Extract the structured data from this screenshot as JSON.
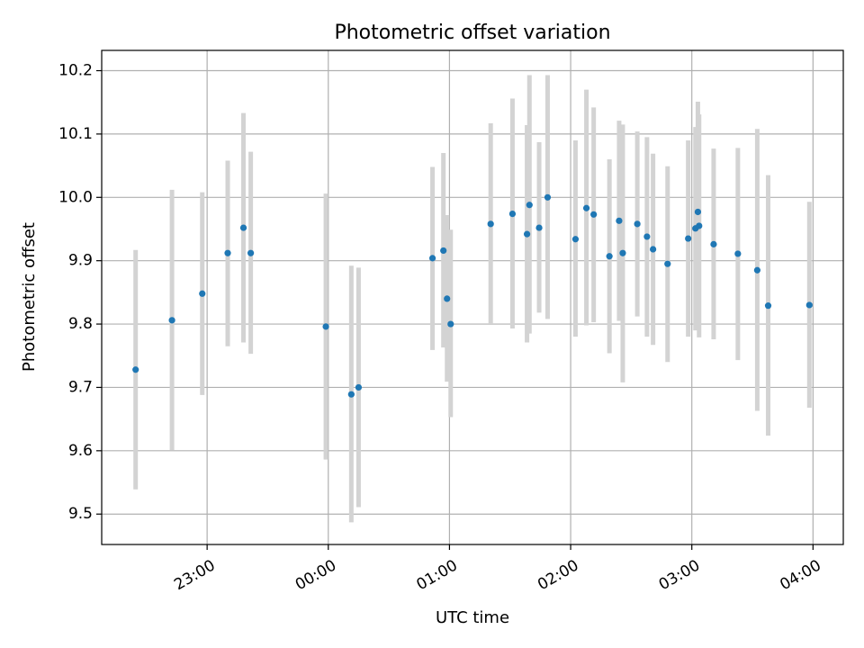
{
  "chart_data": {
    "type": "scatter",
    "title": "Photometric offset variation",
    "xlabel": "UTC time",
    "ylabel": "Photometric offset",
    "grid": true,
    "x_unit": "UTC clock time (hours past 00:00, negative = previous day)",
    "xlim": [
      -1.87,
      4.25
    ],
    "ylim": [
      9.452,
      10.232
    ],
    "x_ticks": [
      {
        "value": -1.0,
        "label": "23:00"
      },
      {
        "value": 0.0,
        "label": "00:00"
      },
      {
        "value": 1.0,
        "label": "01:00"
      },
      {
        "value": 2.0,
        "label": "02:00"
      },
      {
        "value": 3.0,
        "label": "03:00"
      },
      {
        "value": 4.0,
        "label": "04:00"
      }
    ],
    "y_ticks": [
      {
        "value": 9.5,
        "label": "9.5"
      },
      {
        "value": 9.6,
        "label": "9.6"
      },
      {
        "value": 9.7,
        "label": "9.7"
      },
      {
        "value": 9.8,
        "label": "9.8"
      },
      {
        "value": 9.9,
        "label": "9.9"
      },
      {
        "value": 10.0,
        "label": "10.0"
      },
      {
        "value": 10.1,
        "label": "10.1"
      },
      {
        "value": 10.2,
        "label": "10.2"
      }
    ],
    "marker_color": "#1f77b4",
    "errorbar_color": "#d3d3d3",
    "points": [
      {
        "x": -1.59,
        "y": 9.728,
        "low": 9.539,
        "high": 9.917
      },
      {
        "x": -1.29,
        "y": 9.806,
        "low": 9.601,
        "high": 10.012
      },
      {
        "x": -1.04,
        "y": 9.848,
        "low": 9.688,
        "high": 10.008
      },
      {
        "x": -0.83,
        "y": 9.912,
        "low": 9.765,
        "high": 10.058
      },
      {
        "x": -0.7,
        "y": 9.952,
        "low": 9.771,
        "high": 10.133
      },
      {
        "x": -0.64,
        "y": 9.912,
        "low": 9.753,
        "high": 10.072
      },
      {
        "x": -0.02,
        "y": 9.796,
        "low": 9.586,
        "high": 10.006
      },
      {
        "x": 0.19,
        "y": 9.689,
        "low": 9.487,
        "high": 9.892
      },
      {
        "x": 0.25,
        "y": 9.7,
        "low": 9.511,
        "high": 9.889
      },
      {
        "x": 0.86,
        "y": 9.904,
        "low": 9.759,
        "high": 10.048
      },
      {
        "x": 0.95,
        "y": 9.916,
        "low": 9.763,
        "high": 10.07
      },
      {
        "x": 0.98,
        "y": 9.84,
        "low": 9.709,
        "high": 9.972
      },
      {
        "x": 1.01,
        "y": 9.8,
        "low": 9.653,
        "high": 9.949
      },
      {
        "x": 1.34,
        "y": 9.958,
        "low": 9.8,
        "high": 10.117
      },
      {
        "x": 1.52,
        "y": 9.974,
        "low": 9.793,
        "high": 10.156
      },
      {
        "x": 1.64,
        "y": 9.942,
        "low": 9.771,
        "high": 10.114
      },
      {
        "x": 1.66,
        "y": 9.988,
        "low": 9.785,
        "high": 10.193
      },
      {
        "x": 1.74,
        "y": 9.952,
        "low": 9.818,
        "high": 10.087
      },
      {
        "x": 1.81,
        "y": 10.0,
        "low": 9.808,
        "high": 10.193
      },
      {
        "x": 2.04,
        "y": 9.934,
        "low": 9.78,
        "high": 10.09
      },
      {
        "x": 2.13,
        "y": 9.983,
        "low": 9.798,
        "high": 10.17
      },
      {
        "x": 2.19,
        "y": 9.973,
        "low": 9.803,
        "high": 10.142
      },
      {
        "x": 2.32,
        "y": 9.907,
        "low": 9.754,
        "high": 10.06
      },
      {
        "x": 2.4,
        "y": 9.963,
        "low": 9.805,
        "high": 10.121
      },
      {
        "x": 2.43,
        "y": 9.912,
        "low": 9.708,
        "high": 10.115
      },
      {
        "x": 2.55,
        "y": 9.958,
        "low": 9.812,
        "high": 10.104
      },
      {
        "x": 2.63,
        "y": 9.938,
        "low": 9.78,
        "high": 10.095
      },
      {
        "x": 2.68,
        "y": 9.918,
        "low": 9.767,
        "high": 10.069
      },
      {
        "x": 2.8,
        "y": 9.895,
        "low": 9.74,
        "high": 10.049
      },
      {
        "x": 2.97,
        "y": 9.935,
        "low": 9.78,
        "high": 10.09
      },
      {
        "x": 3.03,
        "y": 9.951,
        "low": 9.79,
        "high": 10.111
      },
      {
        "x": 3.05,
        "y": 9.977,
        "low": 9.802,
        "high": 10.151
      },
      {
        "x": 3.06,
        "y": 9.955,
        "low": 9.779,
        "high": 10.131
      },
      {
        "x": 3.18,
        "y": 9.926,
        "low": 9.776,
        "high": 10.077
      },
      {
        "x": 3.38,
        "y": 9.911,
        "low": 9.743,
        "high": 10.078
      },
      {
        "x": 3.54,
        "y": 9.885,
        "low": 9.663,
        "high": 10.108
      },
      {
        "x": 3.63,
        "y": 9.829,
        "low": 9.624,
        "high": 10.035
      },
      {
        "x": 3.97,
        "y": 9.83,
        "low": 9.668,
        "high": 9.993
      }
    ]
  }
}
